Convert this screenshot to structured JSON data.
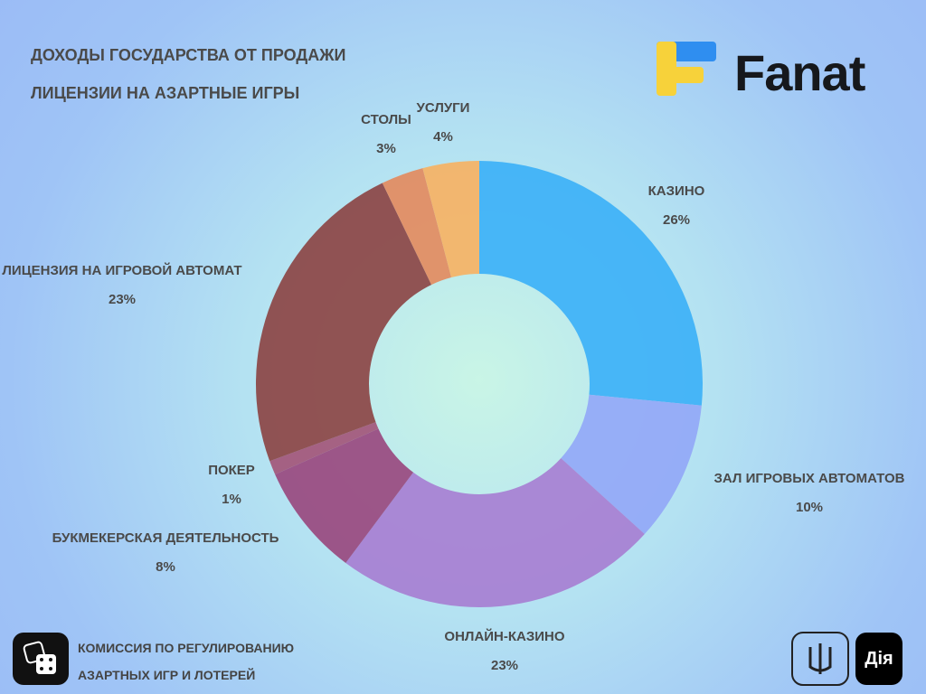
{
  "chart_data": {
    "type": "donut",
    "title": "ДОХОДЫ ГОСУДАРСТВА ОТ ПРОДАЖИ ЛИЦЕНЗИИ НА АЗАРТНЫЕ ИГРЫ",
    "categories": [
      "КАЗИНО",
      "ЗАЛ ИГРОВЫХ АВТОМАТОВ",
      "ОНЛАЙН-КАЗИНО",
      "БУКМЕКЕРСКАЯ ДЕЯТЕЛЬНОСТЬ",
      "ПОКЕР",
      "ЛИЦЕНЗИЯ НА ИГРОВОЙ АВТОМАТ",
      "СТОЛЫ",
      "УСЛУГИ"
    ],
    "values": [
      26,
      10,
      23,
      8,
      1,
      23,
      3,
      4
    ],
    "value_labels": [
      "26%",
      "10%",
      "23%",
      "8%",
      "1%",
      "23%",
      "3%",
      "4%"
    ],
    "colors": [
      "#3db1f7",
      "#93a8f7",
      "#a77fd2",
      "#99497f",
      "#a3567a",
      "#8c4545",
      "#e38b60",
      "#f6b264"
    ]
  },
  "branding": {
    "logo": "Fanat",
    "source": "КОМИССИЯ ПО РЕГУЛИРОВАНИЮ АЗАРТНЫХ ИГР И ЛОТЕРЕЙ",
    "app": "Дія"
  }
}
